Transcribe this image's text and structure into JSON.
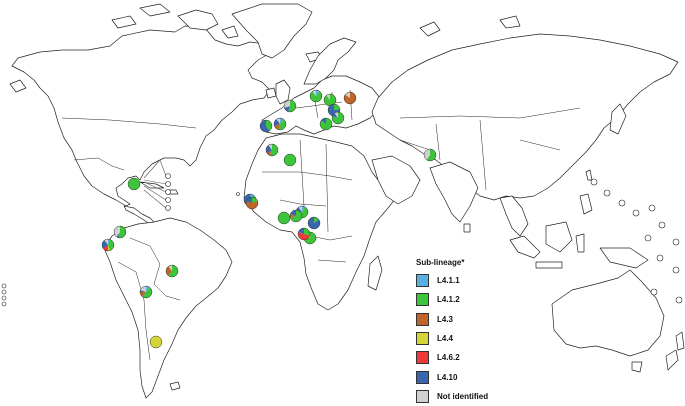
{
  "legend": {
    "title": "Sub-lineage*",
    "items": [
      {
        "label": "L4.1.1",
        "color": "#5aaee2"
      },
      {
        "label": "L4.1.2",
        "color": "#3cc43a"
      },
      {
        "label": "L4.3",
        "color": "#c0652a"
      },
      {
        "label": "L4.4",
        "color": "#d4d43a"
      },
      {
        "label": "L4.6.2",
        "color": "#f03a3a"
      },
      {
        "label": "L4.10",
        "color": "#3a66b0"
      },
      {
        "label": "Not identified",
        "color": "#d0d0d0"
      }
    ]
  },
  "sites": [
    {
      "name": "portugal",
      "shares": [
        0,
        0.4,
        0,
        0,
        0,
        0.6,
        0
      ]
    },
    {
      "name": "spain",
      "shares": [
        0.1,
        0.45,
        0.15,
        0,
        0,
        0.2,
        0.1
      ]
    },
    {
      "name": "france",
      "shares": [
        0,
        0.55,
        0,
        0,
        0,
        0.15,
        0.3
      ]
    },
    {
      "name": "germany",
      "shares": [
        0.1,
        0.8,
        0,
        0,
        0,
        0,
        0.1
      ]
    },
    {
      "name": "poland",
      "shares": [
        0,
        0.9,
        0,
        0,
        0,
        0,
        0.1
      ]
    },
    {
      "name": "belarus",
      "shares": [
        0,
        0,
        0.85,
        0,
        0,
        0,
        0.15
      ]
    },
    {
      "name": "hungary",
      "shares": [
        0,
        0.25,
        0,
        0,
        0,
        0.75,
        0
      ]
    },
    {
      "name": "italy",
      "shares": [
        0,
        0.85,
        0,
        0,
        0,
        0.15,
        0
      ]
    },
    {
      "name": "balkans",
      "shares": [
        0,
        0.8,
        0,
        0,
        0,
        0.1,
        0.1
      ]
    },
    {
      "name": "morocco",
      "shares": [
        0,
        0.55,
        0.1,
        0,
        0,
        0.25,
        0.1
      ]
    },
    {
      "name": "algeria",
      "shares": [
        0,
        1,
        0,
        0,
        0,
        0,
        0
      ]
    },
    {
      "name": "pakistan",
      "shares": [
        0,
        0.6,
        0,
        0,
        0,
        0,
        0.4
      ]
    },
    {
      "name": "senegal",
      "shares": [
        0.1,
        0.1,
        0.4,
        0,
        0,
        0.4,
        0
      ]
    },
    {
      "name": "guinea",
      "shares": [
        0,
        0.2,
        0.6,
        0,
        0,
        0.2,
        0
      ]
    },
    {
      "name": "burkina-faso",
      "shares": [
        0.1,
        0.5,
        0.1,
        0,
        0,
        0.2,
        0.1
      ]
    },
    {
      "name": "ghana",
      "shares": [
        0,
        1,
        0,
        0,
        0,
        0,
        0
      ]
    },
    {
      "name": "nigeria",
      "shares": [
        0,
        0.7,
        0.1,
        0,
        0,
        0.2,
        0
      ]
    },
    {
      "name": "cameroon",
      "shares": [
        0,
        0.15,
        0,
        0,
        0,
        0.85,
        0
      ]
    },
    {
      "name": "gabon",
      "shares": [
        0,
        0.8,
        0,
        0,
        0,
        0,
        0.2
      ]
    },
    {
      "name": "equatorial-guinea",
      "shares": [
        0,
        0.3,
        0,
        0,
        0.5,
        0.2,
        0
      ]
    },
    {
      "name": "caribbean",
      "shares": [
        0,
        1,
        0,
        0,
        0,
        0,
        0
      ]
    },
    {
      "name": "colombia",
      "shares": [
        0,
        0.55,
        0,
        0,
        0,
        0.05,
        0.4
      ]
    },
    {
      "name": "ecuador",
      "shares": [
        0.05,
        0.4,
        0,
        0.05,
        0.15,
        0.25,
        0.1
      ]
    },
    {
      "name": "brazil",
      "shares": [
        0,
        0.6,
        0.3,
        0,
        0,
        0,
        0.1
      ]
    },
    {
      "name": "paraguay",
      "shares": [
        0.1,
        0.5,
        0.15,
        0,
        0,
        0.05,
        0.2
      ]
    },
    {
      "name": "argentina",
      "shares": [
        0,
        0,
        0,
        1,
        0,
        0,
        0
      ]
    }
  ]
}
